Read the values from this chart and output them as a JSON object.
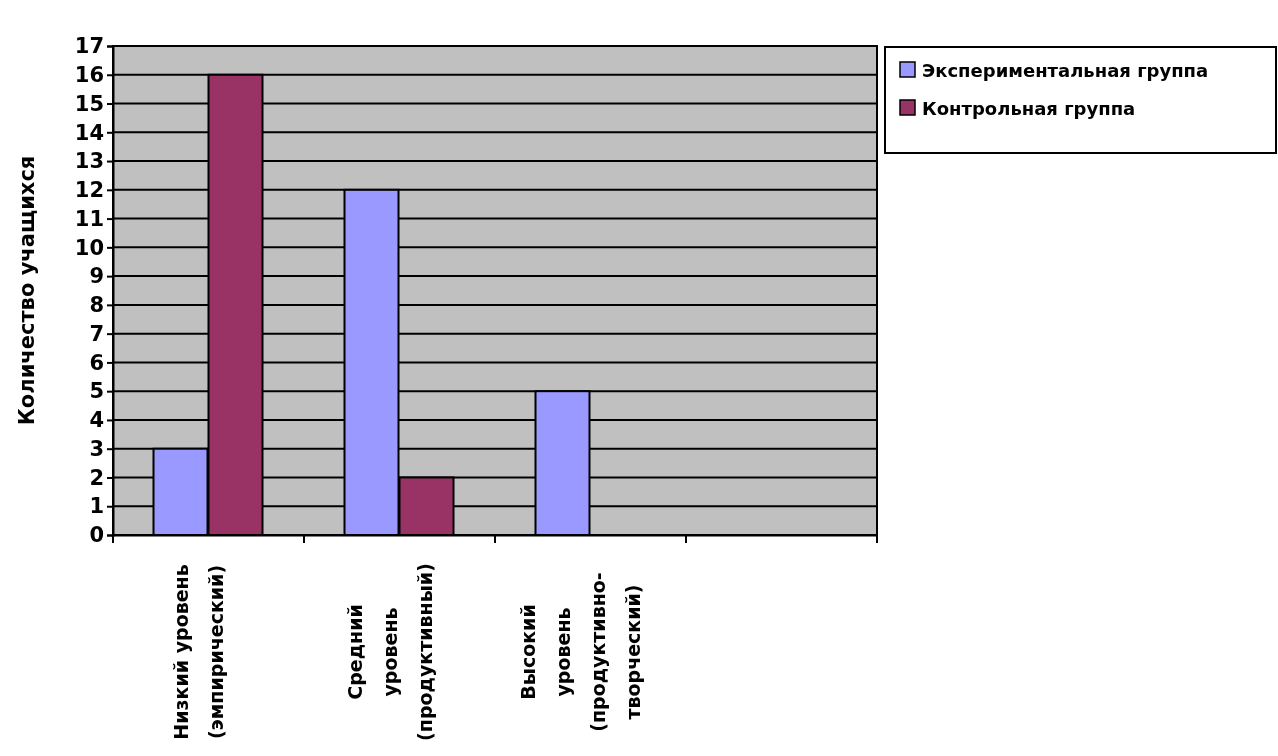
{
  "chart_data": {
    "type": "bar",
    "ylabel": "Количество учащихся",
    "categories": [
      "Низкий уровень\n(эмпирический)",
      "Средний\nуровень\n(продуктивный)",
      "Высокий\nуровень\n(продуктивно-\nтворческий)",
      null
    ],
    "series": [
      {
        "name": "Экспериментальная группа",
        "color": "#9999ff",
        "values": [
          3,
          12,
          5,
          null
        ]
      },
      {
        "name": "Контрольная группа",
        "color": "#993366",
        "values": [
          16,
          2,
          null,
          null
        ]
      }
    ],
    "ylim": [
      0,
      17
    ],
    "yticks": [
      0,
      1,
      2,
      3,
      4,
      5,
      6,
      7,
      8,
      9,
      10,
      11,
      12,
      13,
      14,
      15,
      16,
      17
    ],
    "grid": "y",
    "legend": "top right"
  }
}
